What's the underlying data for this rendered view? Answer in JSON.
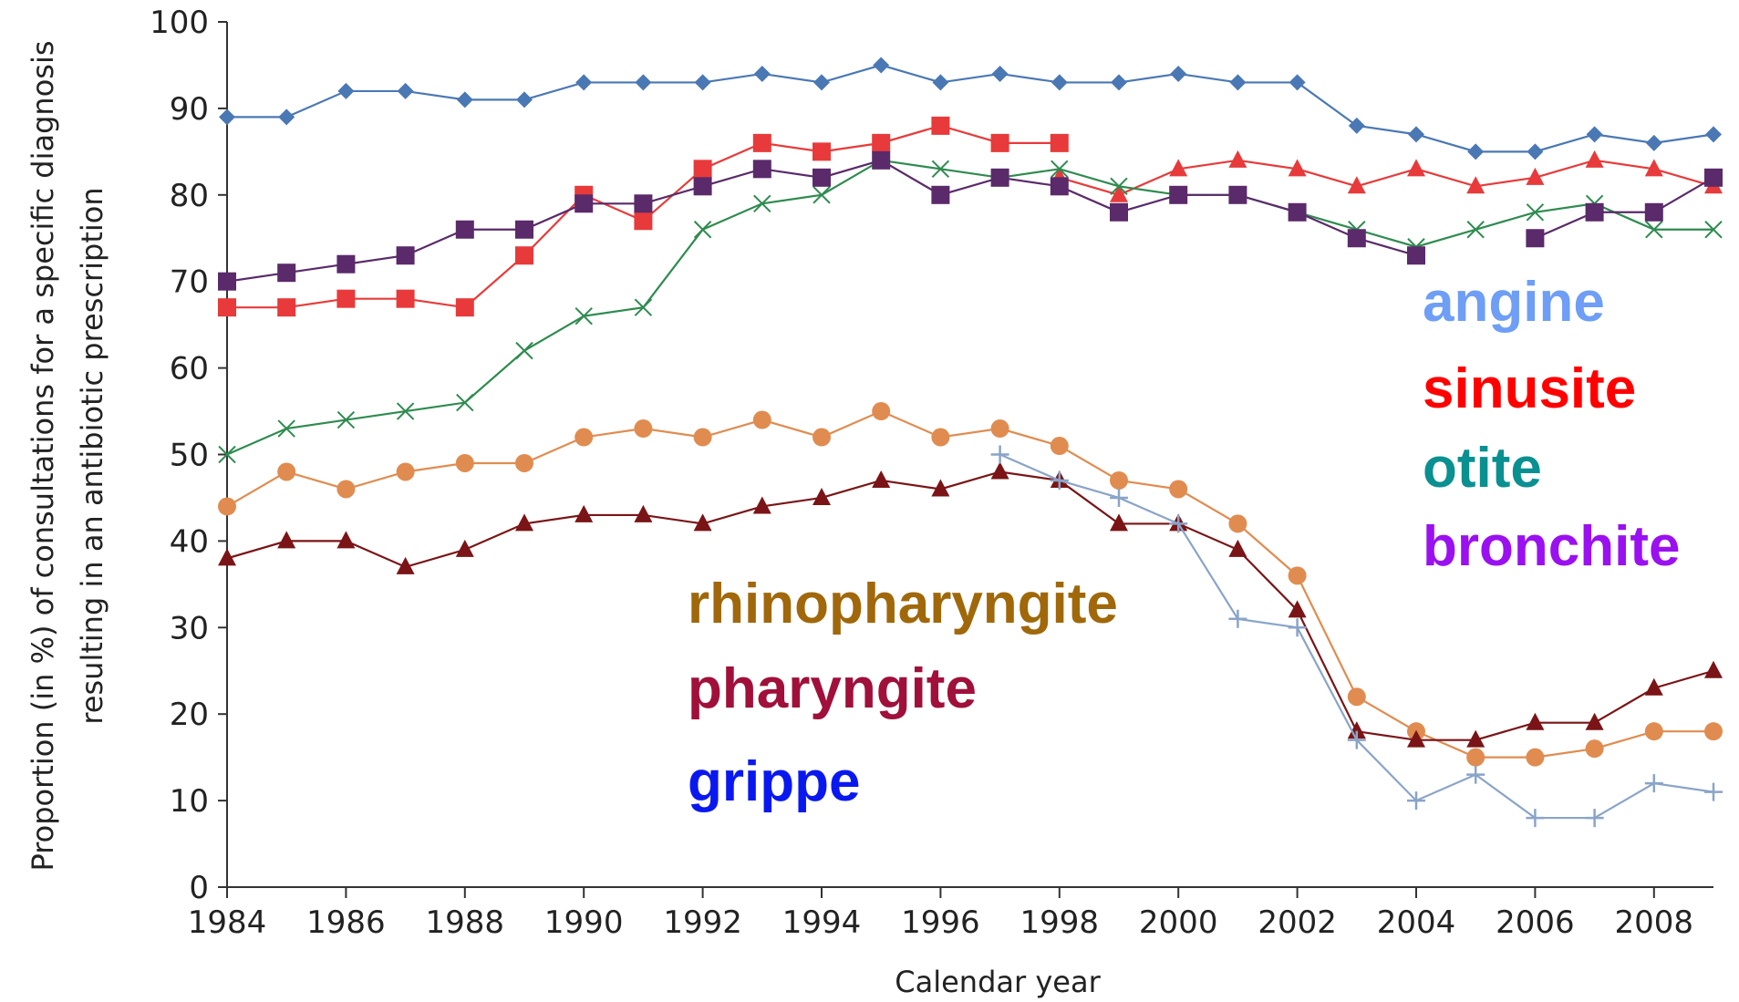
{
  "chart_data": {
    "type": "line",
    "xlabel": "Calendar year",
    "ylabel": [
      "Proportion (in %) of consultations for a specific diagnosis",
      "resulting in an antibiotic prescription"
    ],
    "x": [
      1984,
      1985,
      1986,
      1987,
      1988,
      1989,
      1990,
      1991,
      1992,
      1993,
      1994,
      1995,
      1996,
      1997,
      1998,
      1999,
      2000,
      2001,
      2002,
      2003,
      2004,
      2005,
      2006,
      2007,
      2008,
      2009
    ],
    "xlim": [
      1984,
      2009
    ],
    "xticks": [
      1984,
      1986,
      1988,
      1990,
      1992,
      1994,
      1996,
      1998,
      2000,
      2002,
      2004,
      2006,
      2008
    ],
    "ylim": [
      0,
      100
    ],
    "yticks": [
      0,
      10,
      20,
      30,
      40,
      50,
      60,
      70,
      80,
      90,
      100
    ],
    "series": [
      {
        "color": "#4a78b4",
        "marker": "diamond",
        "values": [
          89,
          89,
          92,
          92,
          91,
          91,
          93,
          93,
          93,
          94,
          93,
          95,
          93,
          94,
          93,
          93,
          94,
          93,
          93,
          88,
          87,
          85,
          85,
          87,
          86,
          87
        ]
      },
      {
        "color": "#e83a3a",
        "marker": "square",
        "values": [
          67,
          67,
          68,
          68,
          67,
          73,
          80,
          77,
          83,
          86,
          85,
          86,
          88,
          86,
          86,
          null,
          null,
          null,
          null,
          null,
          null,
          null,
          null,
          null,
          null,
          null
        ]
      },
      {
        "color": "#e83a3a",
        "marker": "triangle",
        "values": [
          null,
          null,
          null,
          null,
          null,
          null,
          null,
          null,
          null,
          null,
          null,
          null,
          null,
          null,
          82,
          80,
          83,
          84,
          83,
          81,
          83,
          81,
          82,
          84,
          83,
          81
        ]
      },
      {
        "color": "#2e8b4f",
        "marker": "x",
        "values": [
          50,
          53,
          54,
          55,
          56,
          62,
          66,
          67,
          76,
          79,
          80,
          84,
          83,
          82,
          83,
          81,
          80,
          80,
          78,
          76,
          74,
          76,
          78,
          79,
          76,
          76
        ]
      },
      {
        "color": "#5a2a6a",
        "marker": "square",
        "values": [
          70,
          71,
          72,
          73,
          76,
          76,
          79,
          79,
          81,
          83,
          82,
          84,
          80,
          82,
          81,
          78,
          80,
          80,
          78,
          75,
          73,
          null,
          75,
          78,
          78,
          82
        ]
      },
      {
        "color": "#e08c50",
        "marker": "circle",
        "values": [
          44,
          48,
          46,
          48,
          49,
          49,
          52,
          53,
          52,
          54,
          52,
          55,
          52,
          53,
          51,
          47,
          46,
          42,
          36,
          22,
          18,
          15,
          15,
          16,
          18,
          18
        ]
      },
      {
        "color": "#7a1416",
        "marker": "triangle",
        "values": [
          38,
          40,
          40,
          37,
          39,
          42,
          43,
          43,
          42,
          44,
          45,
          47,
          46,
          48,
          47,
          42,
          42,
          39,
          32,
          18,
          17,
          17,
          19,
          19,
          23,
          25
        ]
      },
      {
        "color": "#8aa4c8",
        "marker": "plus",
        "values": [
          null,
          null,
          null,
          null,
          null,
          null,
          null,
          null,
          null,
          null,
          null,
          null,
          null,
          50,
          47,
          45,
          42,
          31,
          30,
          17,
          10,
          13,
          8,
          8,
          12,
          11
        ]
      }
    ],
    "annotations": [
      {
        "text": "angine",
        "color": "#6e9ef5"
      },
      {
        "text": "sinusite",
        "color": "#ff0000"
      },
      {
        "text": "otite",
        "color": "#0a9090"
      },
      {
        "text": "bronchite",
        "color": "#9a10f0"
      },
      {
        "text": "rhinopharyngite",
        "color": "#a0680a"
      },
      {
        "text": "pharyngite",
        "color": "#a0103a"
      },
      {
        "text": "grippe",
        "color": "#0a18f0"
      }
    ]
  }
}
